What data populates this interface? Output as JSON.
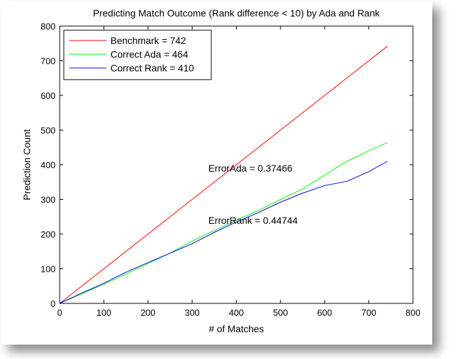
{
  "chart_data": {
    "type": "line",
    "title": "Predicting Match Outcome (Rank difference < 10) by Ada and Rank",
    "xlabel": "# of Matches",
    "ylabel": "Prediction Count",
    "xlim": [
      0,
      800
    ],
    "ylim": [
      0,
      800
    ],
    "xticks": [
      "0",
      "100",
      "200",
      "300",
      "400",
      "500",
      "600",
      "700",
      "800"
    ],
    "yticks": [
      "0",
      "100",
      "200",
      "300",
      "400",
      "500",
      "600",
      "700",
      "800"
    ],
    "grid": false,
    "legend_position": "top-left",
    "series": [
      {
        "name": "Benchmark = 742",
        "color": "#ff0000",
        "x": [
          0,
          742
        ],
        "y": [
          0,
          742
        ]
      },
      {
        "name": "Correct Ada = 464",
        "color": "#00ff00",
        "x": [
          0,
          50,
          100,
          150,
          200,
          250,
          300,
          350,
          400,
          450,
          500,
          550,
          600,
          650,
          700,
          742
        ],
        "y": [
          0,
          28,
          55,
          85,
          115,
          145,
          180,
          210,
          240,
          268,
          300,
          330,
          370,
          410,
          440,
          464
        ]
      },
      {
        "name": "Correct Rank = 410",
        "color": "#0000ff",
        "x": [
          0,
          50,
          100,
          150,
          200,
          250,
          300,
          350,
          400,
          450,
          500,
          550,
          600,
          650,
          700,
          742
        ],
        "y": [
          0,
          30,
          58,
          90,
          118,
          145,
          172,
          205,
          235,
          262,
          292,
          318,
          340,
          352,
          380,
          410
        ]
      }
    ],
    "annotations": [
      {
        "text": "ErrorAda = 0.37466",
        "x": 450,
        "y": 390
      },
      {
        "text": "ErrorRank = 0.44744",
        "x": 450,
        "y": 240
      }
    ]
  }
}
